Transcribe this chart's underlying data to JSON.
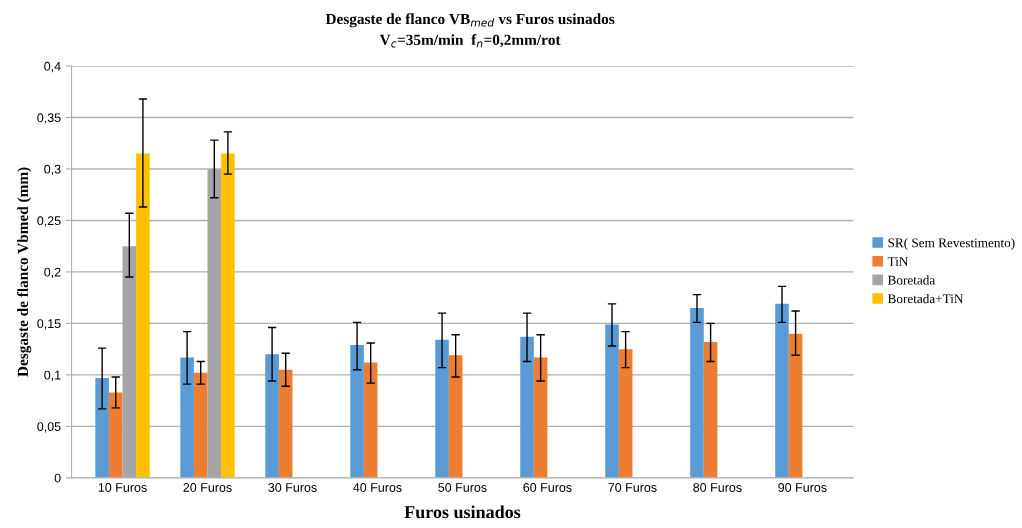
{
  "chart_data": {
    "type": "bar",
    "title": "Desgaste de flanco VB$_{med}$ vs Furos usinados",
    "subtitle": "V$_{c}$=35m/min  f$_{n}$=0,2mm/rot",
    "xlabel": "Furos usinados",
    "ylabel": "Desgaste de flanco Vbmed (mm)",
    "categories": [
      "10 Furos",
      "20 Furos",
      "30 Furos",
      "40 Furos",
      "50 Furos",
      "60 Furos",
      "70 Furos",
      "80 Furos",
      "90 Furos"
    ],
    "series": [
      {
        "name": "SR( Sem Revestimento)",
        "color": "#5b9bd5",
        "values": [
          0.097,
          0.117,
          0.12,
          0.129,
          0.134,
          0.137,
          0.149,
          0.165,
          0.169
        ],
        "errors": [
          [
            0.067,
            0.126
          ],
          [
            0.091,
            0.142
          ],
          [
            0.094,
            0.146
          ],
          [
            0.105,
            0.151
          ],
          [
            0.107,
            0.16
          ],
          [
            0.113,
            0.16
          ],
          [
            0.128,
            0.169
          ],
          [
            0.151,
            0.178
          ],
          [
            0.151,
            0.186
          ]
        ]
      },
      {
        "name": "TiN",
        "color": "#ed7d31",
        "values": [
          0.083,
          0.102,
          0.105,
          0.112,
          0.119,
          0.117,
          0.125,
          0.132,
          0.14
        ],
        "errors": [
          [
            0.068,
            0.098
          ],
          [
            0.091,
            0.113
          ],
          [
            0.089,
            0.121
          ],
          [
            0.092,
            0.131
          ],
          [
            0.098,
            0.139
          ],
          [
            0.094,
            0.139
          ],
          [
            0.107,
            0.142
          ],
          [
            0.113,
            0.15
          ],
          [
            0.119,
            0.162
          ]
        ]
      },
      {
        "name": "Boretada",
        "color": "#a5a5a5",
        "values": [
          0.225,
          0.3,
          null,
          null,
          null,
          null,
          null,
          null,
          null
        ],
        "errors": [
          [
            0.195,
            0.257
          ],
          [
            0.272,
            0.328
          ],
          null,
          null,
          null,
          null,
          null,
          null,
          null
        ]
      },
      {
        "name": "Boretada+TiN",
        "color": "#ffc000",
        "values": [
          0.315,
          0.315,
          null,
          null,
          null,
          null,
          null,
          null,
          null
        ],
        "errors": [
          [
            0.263,
            0.368
          ],
          [
            0.295,
            0.336
          ],
          null,
          null,
          null,
          null,
          null,
          null,
          null
        ]
      }
    ],
    "ylim": [
      0,
      0.4
    ],
    "yticks": [
      0,
      {
        "value": 0.05,
        "label": "0,05"
      },
      {
        "value": 0.1,
        "label": "0,1"
      },
      {
        "value": 0.15,
        "label": "0,15"
      },
      {
        "value": 0.2,
        "label": "0,2"
      },
      {
        "value": 0.25,
        "label": "0,25"
      },
      {
        "value": 0.3,
        "label": "0,3"
      },
      {
        "value": 0.35,
        "label": "0,35"
      },
      {
        "value": 0.4,
        "label": "0,4"
      }
    ],
    "grid": "y",
    "legend": "right"
  }
}
